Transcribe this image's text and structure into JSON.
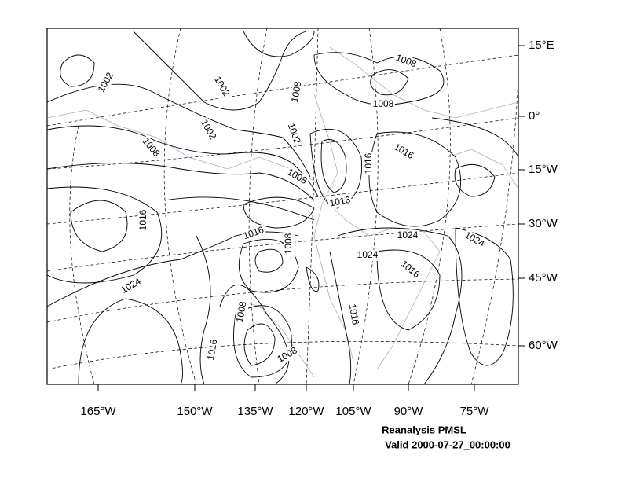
{
  "map": {
    "right_labels": [
      "15°E",
      "0°",
      "15°W",
      "30°W",
      "45°W",
      "60°W"
    ],
    "bottom_labels": [
      "165°W",
      "150°W",
      "135°W",
      "120°W",
      "105°W",
      "90°W",
      "75°W"
    ],
    "contour_labels": [
      1002,
      1002,
      1008,
      1008,
      1002,
      1008,
      1002,
      1008,
      1016,
      1016,
      1008,
      1016,
      1016,
      1016,
      1008,
      1024,
      1024,
      1024,
      1016,
      1024,
      1016,
      1008,
      1016,
      1008
    ],
    "caption": [
      "Reanalysis PMSL",
      "Valid 2000-07-27_00:00:00"
    ]
  }
}
